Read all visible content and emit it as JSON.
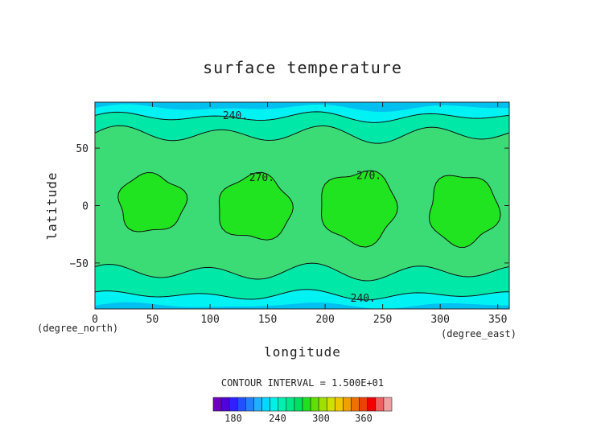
{
  "chart_data": {
    "type": "contour",
    "title": "surface temperature",
    "xlabel": "longitude",
    "ylabel": "latitude",
    "x_unit": "(degree_east)",
    "y_unit": "(degree_north)",
    "xlim": [
      0,
      360
    ],
    "ylim": [
      -90,
      90
    ],
    "x_ticks": [
      0,
      50,
      100,
      150,
      200,
      250,
      300,
      350
    ],
    "y_ticks": [
      -50,
      0,
      50
    ],
    "contour_interval_text": "CONTOUR INTERVAL = 1.500E+01",
    "contour_interval": 15,
    "contour_labels": [
      {
        "text": "240.",
        "lon": 122,
        "lat": 78
      },
      {
        "text": "240.",
        "lon": 233,
        "lat": -81
      },
      {
        "text": "270.",
        "lon": 145,
        "lat": 24
      },
      {
        "text": "270.",
        "lon": 238,
        "lat": 26
      }
    ],
    "fill_bands": [
      {
        "level_min": 225,
        "level_max": 240,
        "color": "#00f2f2"
      },
      {
        "level_min": 240,
        "level_max": 255,
        "color": "#00e8a8"
      },
      {
        "level_min": 255,
        "level_max": 270,
        "color": "#3bdc75"
      },
      {
        "level_min": 270,
        "level_max": 285,
        "color": "#1fe41f"
      },
      {
        "level_min": 210,
        "level_max": 225,
        "color": "#00c0f0"
      },
      {
        "level_min": 195,
        "level_max": 210,
        "color": "#1060f0"
      }
    ],
    "warm_regions_270": [
      {
        "lon_min": 20,
        "lon_max": 78,
        "lat_min": -23,
        "lat_max": 27
      },
      {
        "lon_min": 107,
        "lon_max": 171,
        "lat_min": -30,
        "lat_max": 26
      },
      {
        "lon_min": 196,
        "lon_max": 262,
        "lat_min": -33,
        "lat_max": 30
      },
      {
        "lon_min": 290,
        "lon_max": 350,
        "lat_min": -34,
        "lat_max": 27
      }
    ],
    "colorbar": {
      "ticks": [
        "180",
        "240",
        "300",
        "360"
      ],
      "colors": [
        "#7000c0",
        "#5000e0",
        "#3020ff",
        "#2050ff",
        "#2080ff",
        "#20b0ff",
        "#00d8ff",
        "#00f0e8",
        "#00f0b0",
        "#00e888",
        "#00e060",
        "#20e020",
        "#60e000",
        "#a0e000",
        "#d0e000",
        "#f0c800",
        "#f0a000",
        "#f07000",
        "#f04000",
        "#f00000",
        "#f06060",
        "#f0a0a0"
      ]
    }
  }
}
